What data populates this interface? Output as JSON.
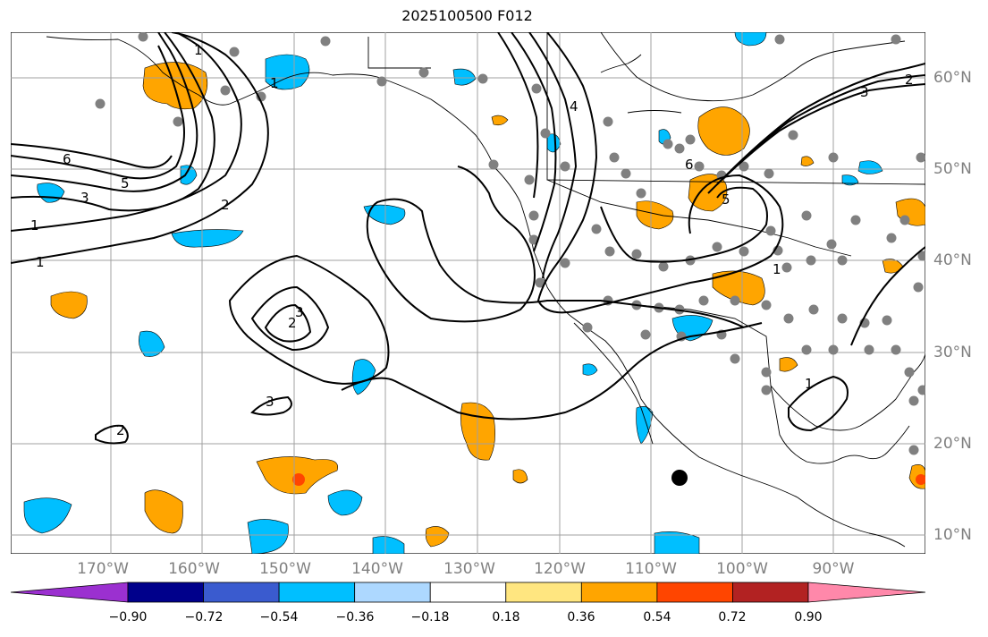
{
  "title": "2025100500 F012",
  "map": {
    "lon_labels": [
      "170°W",
      "160°W",
      "150°W",
      "140°W",
      "130°W",
      "120°W",
      "110°W",
      "100°W",
      "90°W"
    ],
    "lat_labels": [
      "60°N",
      "50°N",
      "40°N",
      "30°N",
      "20°N",
      "10°N"
    ],
    "contour_labels": [
      "6",
      "5",
      "3",
      "2",
      "1",
      "4",
      "3",
      "2",
      "1",
      "5",
      "6",
      "1",
      "1",
      "2",
      "3",
      "3",
      "2",
      "1",
      "1"
    ],
    "colors": {
      "negative_strong": "#00bfff",
      "negative_weak": "#add8ff",
      "positive_weak": "#ffe680",
      "positive": "#ffa500",
      "positive_strong": "#ff4500",
      "dots": "#808080",
      "grid": "#a0a0a0",
      "contour": "#000000"
    }
  },
  "colorbar": {
    "ticks": [
      "−0.90",
      "−0.72",
      "−0.54",
      "−0.36",
      "−0.18",
      "0.18",
      "0.36",
      "0.54",
      "0.72",
      "0.90"
    ],
    "colors": [
      "#9b30d0",
      "#00008b",
      "#3a5bcf",
      "#00bfff",
      "#add8ff",
      "#ffffff",
      "#ffe680",
      "#ffa500",
      "#ff4500",
      "#b22222",
      "#ff88aa"
    ]
  }
}
